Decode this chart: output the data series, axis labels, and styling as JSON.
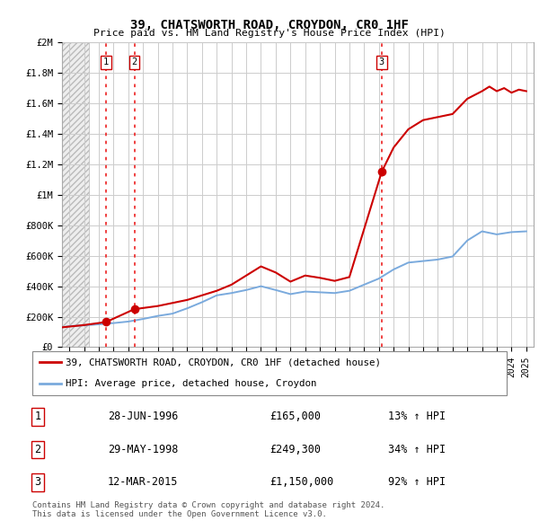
{
  "title": "39, CHATSWORTH ROAD, CROYDON, CR0 1HF",
  "subtitle": "Price paid vs. HM Land Registry's House Price Index (HPI)",
  "ylabel_ticks": [
    "£0",
    "£200K",
    "£400K",
    "£600K",
    "£800K",
    "£1M",
    "£1.2M",
    "£1.4M",
    "£1.6M",
    "£1.8M",
    "£2M"
  ],
  "ytick_values": [
    0,
    200000,
    400000,
    600000,
    800000,
    1000000,
    1200000,
    1400000,
    1600000,
    1800000,
    2000000
  ],
  "ylim": [
    0,
    2000000
  ],
  "xlim_start": 1993.5,
  "xlim_end": 2025.5,
  "hatch_end": 1995.3,
  "sale_dates": [
    1996.49,
    1998.41,
    2015.19
  ],
  "sale_prices": [
    165000,
    249300,
    1150000
  ],
  "sale_labels": [
    "1",
    "2",
    "3"
  ],
  "vline_color": "#ee3333",
  "dot_color": "#cc0000",
  "dot_size": 7,
  "property_line_color": "#cc0000",
  "hpi_line_color": "#7aaadd",
  "legend_label_property": "39, CHATSWORTH ROAD, CROYDON, CR0 1HF (detached house)",
  "legend_label_hpi": "HPI: Average price, detached house, Croydon",
  "table_rows": [
    [
      "1",
      "28-JUN-1996",
      "£165,000",
      "13% ↑ HPI"
    ],
    [
      "2",
      "29-MAY-1998",
      "£249,300",
      "34% ↑ HPI"
    ],
    [
      "3",
      "12-MAR-2015",
      "£1,150,000",
      "92% ↑ HPI"
    ]
  ],
  "footnote": "Contains HM Land Registry data © Crown copyright and database right 2024.\nThis data is licensed under the Open Government Licence v3.0.",
  "background_color": "#ffffff",
  "grid_color": "#cccccc",
  "prop_anchors_x": [
    1993.5,
    1994.0,
    1995.0,
    1996.49,
    1998.41,
    2000,
    2002,
    2004,
    2005,
    2006,
    2007,
    2008,
    2009,
    2010,
    2011,
    2012,
    2013,
    2015.19,
    2016,
    2017,
    2018,
    2019,
    2020,
    2021,
    2022,
    2022.5,
    2023,
    2023.5,
    2024,
    2024.5,
    2025.0
  ],
  "prop_anchors_y": [
    130000,
    135000,
    145000,
    165000,
    249300,
    270000,
    310000,
    370000,
    410000,
    470000,
    530000,
    490000,
    430000,
    470000,
    455000,
    435000,
    460000,
    1150000,
    1310000,
    1430000,
    1490000,
    1510000,
    1530000,
    1630000,
    1680000,
    1710000,
    1680000,
    1700000,
    1670000,
    1690000,
    1680000
  ],
  "hpi_x": [
    1993.5,
    1994,
    1995,
    1996,
    1997,
    1998,
    1999,
    2000,
    2001,
    2002,
    2003,
    2004,
    2005,
    2006,
    2007,
    2008,
    2009,
    2010,
    2011,
    2012,
    2013,
    2014,
    2015,
    2016,
    2017,
    2018,
    2019,
    2020,
    2021,
    2022,
    2023,
    2024,
    2025
  ],
  "hpi_y": [
    130000,
    138000,
    143000,
    150000,
    158000,
    168000,
    185000,
    205000,
    220000,
    255000,
    295000,
    340000,
    355000,
    375000,
    400000,
    375000,
    348000,
    365000,
    360000,
    355000,
    370000,
    410000,
    450000,
    510000,
    555000,
    565000,
    575000,
    595000,
    700000,
    760000,
    740000,
    755000,
    760000
  ]
}
